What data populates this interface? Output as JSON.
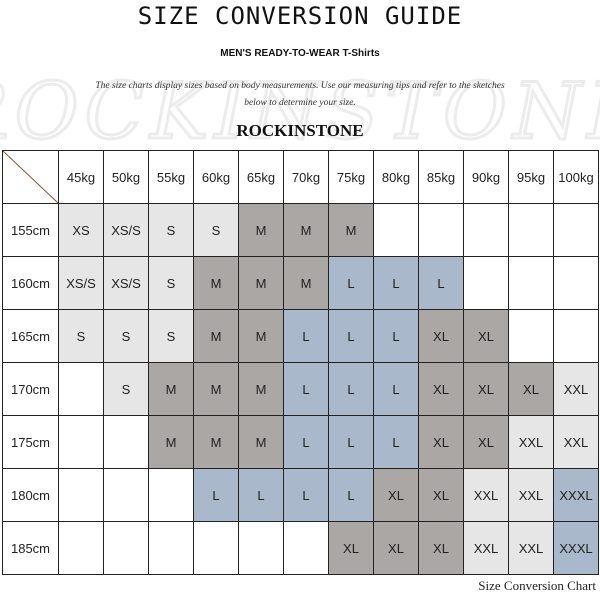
{
  "title": "SIZE CONVERSION GUIDE",
  "subtitle": "MEN'S READY-TO-WEAR T-Shirts",
  "description": "The size charts display sizes based on body measurements.  Use our measuring tips and refer to the sketches below to determine your size.",
  "watermark": "ROCKINSTONE",
  "brand": "ROCKINSTONE",
  "caption": "Size Conversion Chart",
  "colors": {
    "light": "#e6e6e6",
    "dark": "#aba7a5",
    "blue": "#aab8cb",
    "corner_line": "#8b5a3c"
  },
  "table": {
    "columns": [
      "45kg",
      "50kg",
      "55kg",
      "60kg",
      "65kg",
      "70kg",
      "75kg",
      "80kg",
      "85kg",
      "90kg",
      "95kg",
      "100kg"
    ],
    "rows": [
      {
        "height": "155cm",
        "cells": [
          [
            "XS",
            "light"
          ],
          [
            "XS/S",
            "light"
          ],
          [
            "S",
            "light"
          ],
          [
            "S",
            "light"
          ],
          [
            "M",
            "dark"
          ],
          [
            "M",
            "dark"
          ],
          [
            "M",
            "dark"
          ],
          [
            "",
            ""
          ],
          [
            "",
            ""
          ],
          [
            "",
            ""
          ],
          [
            "",
            ""
          ],
          [
            "",
            ""
          ]
        ]
      },
      {
        "height": "160cm",
        "cells": [
          [
            "XS/S",
            "light"
          ],
          [
            "XS/S",
            "light"
          ],
          [
            "S",
            "light"
          ],
          [
            "M",
            "dark"
          ],
          [
            "M",
            "dark"
          ],
          [
            "M",
            "dark"
          ],
          [
            "L",
            "blue"
          ],
          [
            "L",
            "blue"
          ],
          [
            "L",
            "blue"
          ],
          [
            "",
            ""
          ],
          [
            "",
            ""
          ],
          [
            "",
            ""
          ]
        ]
      },
      {
        "height": "165cm",
        "cells": [
          [
            "S",
            "light"
          ],
          [
            "S",
            "light"
          ],
          [
            "S",
            "light"
          ],
          [
            "M",
            "dark"
          ],
          [
            "M",
            "dark"
          ],
          [
            "L",
            "blue"
          ],
          [
            "L",
            "blue"
          ],
          [
            "L",
            "blue"
          ],
          [
            "XL",
            "dark"
          ],
          [
            "XL",
            "dark"
          ],
          [
            "",
            ""
          ],
          [
            "",
            ""
          ]
        ]
      },
      {
        "height": "170cm",
        "cells": [
          [
            "",
            ""
          ],
          [
            "S",
            "light"
          ],
          [
            "M",
            "dark"
          ],
          [
            "M",
            "dark"
          ],
          [
            "M",
            "dark"
          ],
          [
            "L",
            "blue"
          ],
          [
            "L",
            "blue"
          ],
          [
            "L",
            "blue"
          ],
          [
            "XL",
            "dark"
          ],
          [
            "XL",
            "dark"
          ],
          [
            "XL",
            "dark"
          ],
          [
            "XXL",
            "light"
          ]
        ]
      },
      {
        "height": "175cm",
        "cells": [
          [
            "",
            ""
          ],
          [
            "",
            ""
          ],
          [
            "M",
            "dark"
          ],
          [
            "M",
            "dark"
          ],
          [
            "M",
            "dark"
          ],
          [
            "L",
            "blue"
          ],
          [
            "L",
            "blue"
          ],
          [
            "L",
            "blue"
          ],
          [
            "XL",
            "dark"
          ],
          [
            "XL",
            "dark"
          ],
          [
            "XXL",
            "light"
          ],
          [
            "XXL",
            "light"
          ]
        ]
      },
      {
        "height": "180cm",
        "cells": [
          [
            "",
            ""
          ],
          [
            "",
            ""
          ],
          [
            "",
            ""
          ],
          [
            "L",
            "blue"
          ],
          [
            "L",
            "blue"
          ],
          [
            "L",
            "blue"
          ],
          [
            "L",
            "blue"
          ],
          [
            "XL",
            "dark"
          ],
          [
            "XL",
            "dark"
          ],
          [
            "XXL",
            "light"
          ],
          [
            "XXL",
            "light"
          ],
          [
            "XXXL",
            "blue"
          ]
        ]
      },
      {
        "height": "185cm",
        "cells": [
          [
            "",
            ""
          ],
          [
            "",
            ""
          ],
          [
            "",
            ""
          ],
          [
            "",
            ""
          ],
          [
            "",
            ""
          ],
          [
            "",
            ""
          ],
          [
            "XL",
            "dark"
          ],
          [
            "XL",
            "dark"
          ],
          [
            "XL",
            "dark"
          ],
          [
            "XXL",
            "light"
          ],
          [
            "XXL",
            "light"
          ],
          [
            "XXXL",
            "blue"
          ]
        ]
      }
    ]
  }
}
